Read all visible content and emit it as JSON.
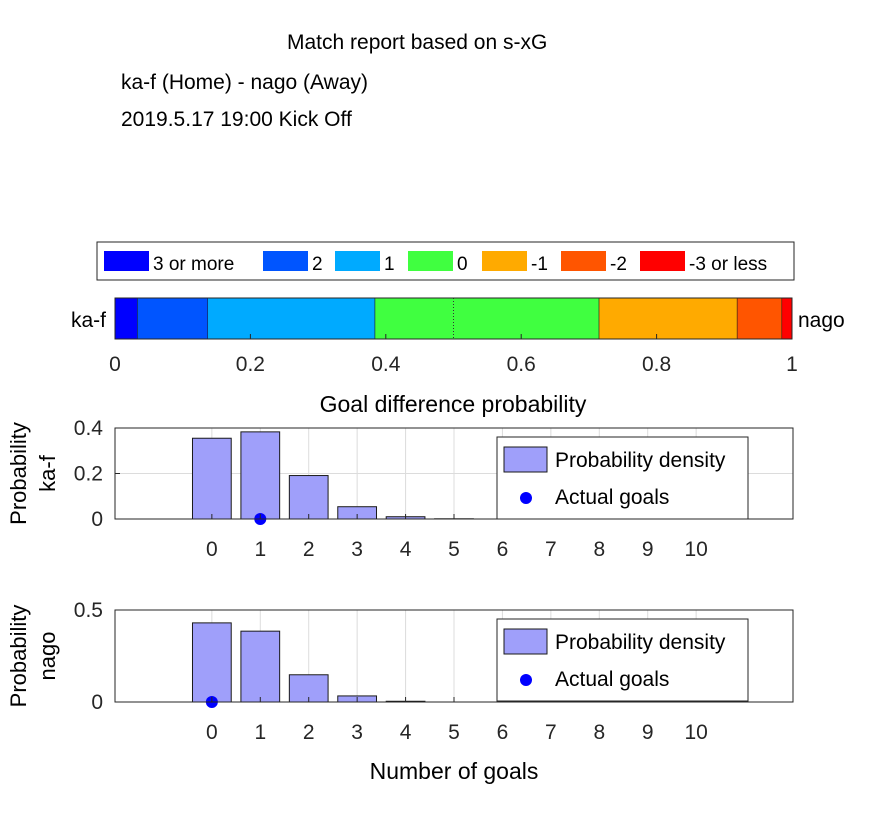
{
  "header": {
    "title": "Match report based on s-xG",
    "match": "ka-f (Home) - nago (Away)",
    "kickoff": "2019.5.17 19:00 Kick Off"
  },
  "chart_data": [
    {
      "type": "stacked-bar",
      "title": "Goal difference probability",
      "left_label": "ka-f",
      "right_label": "nago",
      "xlim": [
        0,
        1
      ],
      "xticks": [
        "0",
        "0.2",
        "0.4",
        "0.6",
        "0.8",
        "1"
      ],
      "midline": 0.5,
      "legend_position": "top",
      "segments": [
        {
          "name": "3 or more",
          "value": 0.033,
          "color": "#0000ff"
        },
        {
          "name": "2",
          "value": 0.104,
          "color": "#0055ff"
        },
        {
          "name": "1",
          "value": 0.247,
          "color": "#00aaff"
        },
        {
          "name": "0",
          "value": 0.331,
          "color": "#40ff40"
        },
        {
          "name": "-1",
          "value": 0.204,
          "color": "#ffaa00"
        },
        {
          "name": "-2",
          "value": 0.066,
          "color": "#ff5500"
        },
        {
          "name": "-3 or less",
          "value": 0.015,
          "color": "#ff0000"
        }
      ]
    },
    {
      "type": "bar",
      "team": "ka-f",
      "ylabel": "Probability",
      "ylim": [
        0,
        0.4
      ],
      "yticks": [
        "0",
        "0.2",
        "0.4"
      ],
      "categories": [
        "0",
        "1",
        "2",
        "3",
        "4",
        "5",
        "6",
        "7",
        "8",
        "9",
        "10"
      ],
      "values": [
        0.355,
        0.383,
        0.191,
        0.054,
        0.01,
        0.001,
        0,
        0,
        0,
        0,
        0
      ],
      "actual_goals": 1,
      "legend": [
        "Probability density",
        "Actual goals"
      ],
      "bar_color": "#9f9ffa",
      "marker_color": "#0000ff"
    },
    {
      "type": "bar",
      "team": "nago",
      "ylabel": "Probability",
      "ylim": [
        0,
        0.5
      ],
      "yticks": [
        "0",
        "0.5"
      ],
      "categories": [
        "0",
        "1",
        "2",
        "3",
        "4",
        "5",
        "6",
        "7",
        "8",
        "9",
        "10"
      ],
      "values": [
        0.43,
        0.385,
        0.148,
        0.033,
        0.004,
        0,
        0,
        0,
        0,
        0,
        0
      ],
      "actual_goals": 0,
      "actual_goals_note": "",
      "legend": [
        "Probability density",
        "Actual goals"
      ],
      "xlabel": "Number of goals",
      "bar_color": "#9f9ffa",
      "marker_color": "#0000ff"
    }
  ]
}
